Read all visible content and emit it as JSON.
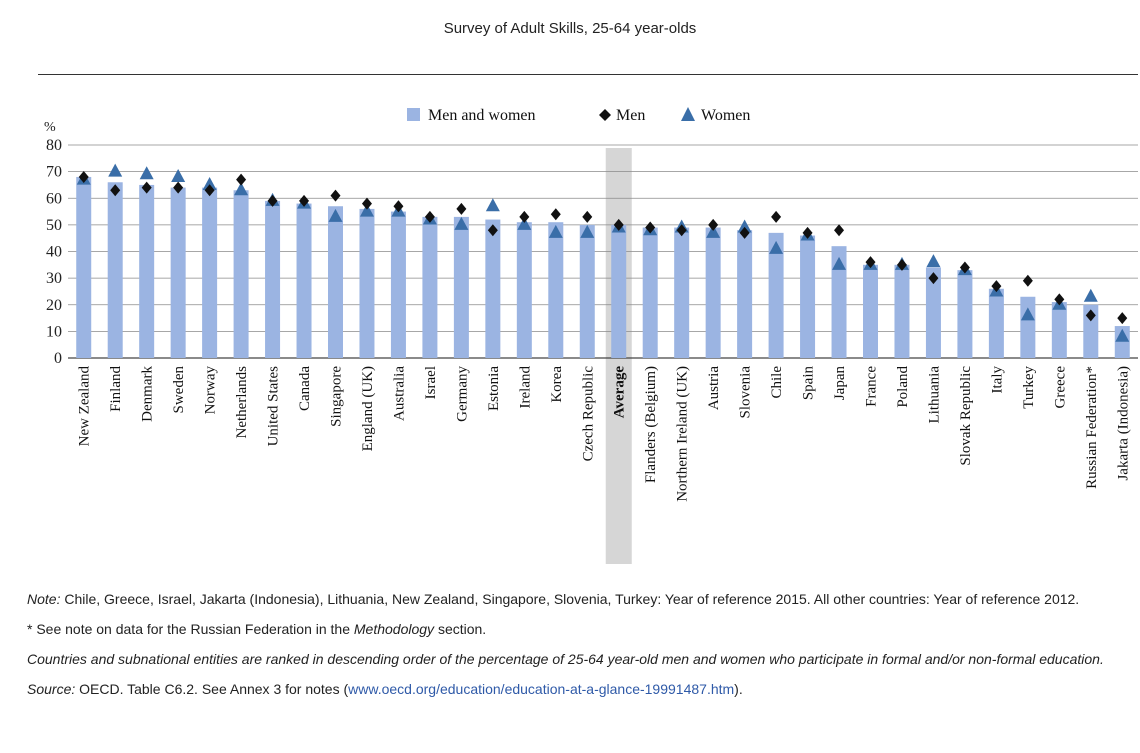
{
  "header": {
    "subtitle": "Survey of Adult Skills, 25-64 year-olds"
  },
  "colors": {
    "bar": "#9bb4e2",
    "men": "#111111",
    "women": "#3a6ea8",
    "average_band": "#c8c8c8"
  },
  "chart_data": {
    "type": "bar",
    "ylabel": "%",
    "ylim": [
      0,
      80
    ],
    "yticks": [
      0,
      10,
      20,
      30,
      40,
      50,
      60,
      70,
      80
    ],
    "grid": true,
    "legend_position": "top-center",
    "highlight_category": "Average",
    "categories": [
      "New Zealand",
      "Finland",
      "Denmark",
      "Sweden",
      "Norway",
      "Netherlands",
      "United States",
      "Canada",
      "Singapore",
      "England (UK)",
      "Australia",
      "Israel",
      "Germany",
      "Estonia",
      "Ireland",
      "Korea",
      "Czech Republic",
      "Average",
      "Flanders (Belgium)",
      "Northern Ireland (UK)",
      "Austria",
      "Slovenia",
      "Chile",
      "Spain",
      "Japan",
      "France",
      "Poland",
      "Lithuania",
      "Slovak Republic",
      "Italy",
      "Turkey",
      "Greece",
      "Russian Federation*",
      "Jakarta (Indonesia)"
    ],
    "series": [
      {
        "name": "Men and women",
        "marker": "bar",
        "values": [
          68,
          66,
          65,
          64,
          64,
          63,
          59,
          58,
          57,
          56,
          55,
          53,
          53,
          52,
          51,
          51,
          50,
          50,
          49,
          49,
          49,
          48,
          47,
          46,
          42,
          35,
          35,
          34,
          33,
          26,
          23,
          21,
          20,
          12
        ]
      },
      {
        "name": "Men",
        "marker": "diamond",
        "values": [
          68,
          63,
          64,
          64,
          63,
          67,
          59,
          59,
          61,
          58,
          57,
          53,
          56,
          48,
          53,
          54,
          53,
          50,
          49,
          48,
          50,
          47,
          53,
          47,
          48,
          36,
          35,
          30,
          34,
          27,
          29,
          22,
          16,
          15
        ]
      },
      {
        "name": "Women",
        "marker": "triangle",
        "values": [
          67,
          70,
          69,
          68,
          65,
          63,
          59,
          58,
          53,
          55,
          55,
          52,
          50,
          57,
          50,
          47,
          47,
          49,
          48,
          49,
          47,
          49,
          41,
          46,
          35,
          35,
          35,
          36,
          33,
          25,
          16,
          20,
          23,
          8
        ]
      }
    ]
  },
  "notes": {
    "note_label": "Note:",
    "note_text": " Chile, Greece, Israel, Jakarta (Indonesia), Lithuania, New Zealand, Singapore, Slovenia, Turkey: Year of reference 2015. All other countries: Year of reference 2012.",
    "russian_prefix": "* See note on data for the Russian Federation in the ",
    "russian_italic": "Methodology",
    "russian_suffix": " section.",
    "ranking": "Countries and subnational entities are ranked in descending order of the percentage of 25-64 year-old men and women who participate in formal and/or non-formal education.",
    "source_label": "Source:",
    "source_text": " OECD. Table C6.2. See Annex 3 for notes (",
    "source_link": "www.oecd.org/education/education-at-a-glance-19991487.htm",
    "source_end": ")."
  }
}
